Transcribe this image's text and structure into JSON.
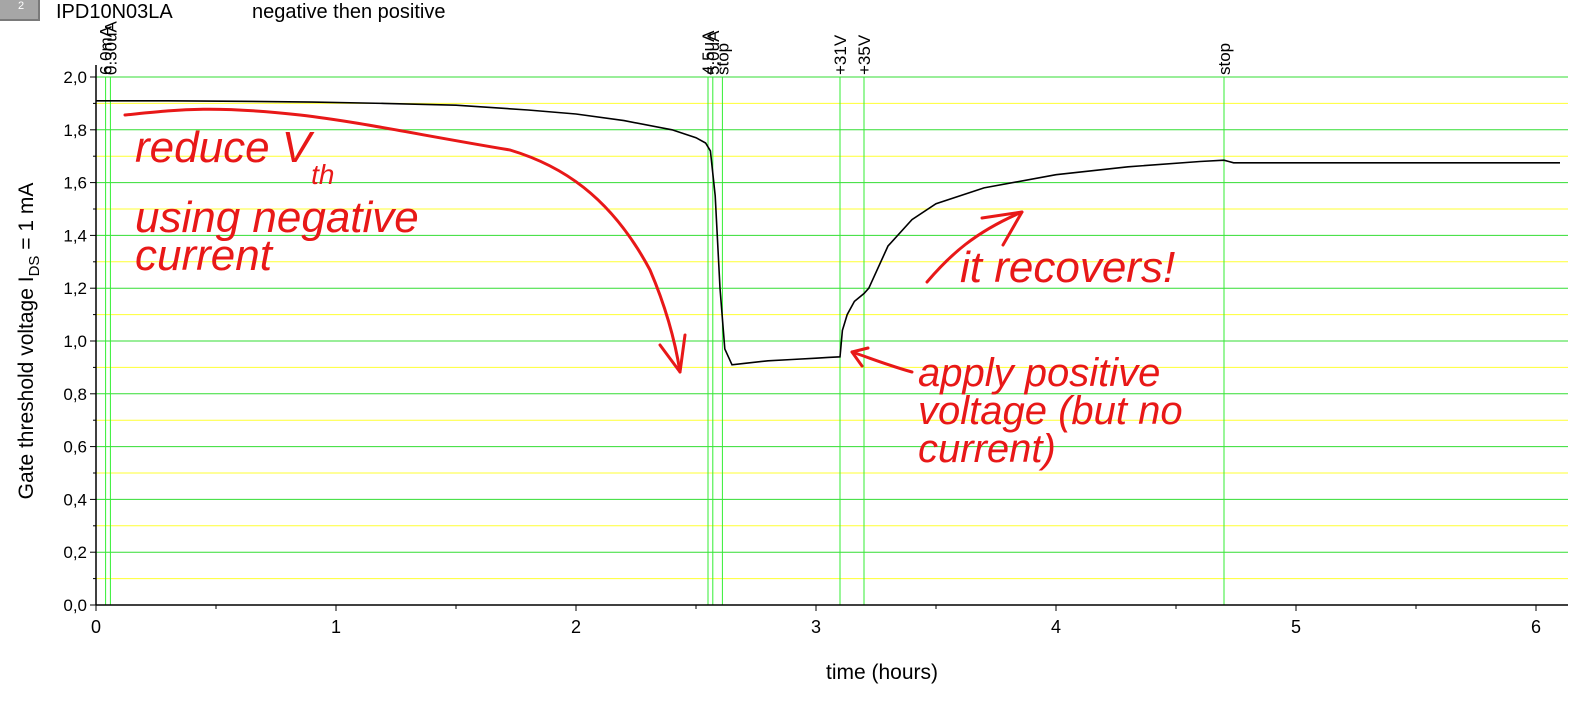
{
  "header": {
    "tab_number": "2",
    "device": "IPD10N03LA",
    "subtitle": "negative then positive"
  },
  "chart_data": {
    "type": "line",
    "xlabel": "time (hours)",
    "ylabel_main": "Gate threshold voltage I",
    "ylabel_sub": "DS",
    "ylabel_tail": " = 1 mA",
    "xlim": [
      0,
      6.1
    ],
    "ylim": [
      0,
      2.0
    ],
    "x_ticks": [
      0,
      1,
      2,
      3,
      4,
      5,
      6
    ],
    "x_tick_labels": [
      "0",
      "1",
      "2",
      "3",
      "4",
      "5",
      "6"
    ],
    "y_ticks": [
      0,
      0.2,
      0.4,
      0.6,
      0.8,
      1.0,
      1.2,
      1.4,
      1.6,
      1.8,
      2.0
    ],
    "y_tick_labels": [
      "0,0",
      "0,2",
      "0,4",
      "0,6",
      "0,8",
      "1,0",
      "1,2",
      "1,4",
      "1,6",
      "1,8",
      "2,0"
    ],
    "grid": true,
    "colors": {
      "major_grid": "#33dd33",
      "minor_grid": "#ffff33",
      "line": "#000000",
      "markers": "#33ee33",
      "annotation": "#e81818"
    },
    "series": [
      {
        "x": [
          0.0,
          0.3,
          0.6,
          0.9,
          1.2,
          1.5,
          1.8,
          2.0,
          2.2,
          2.4,
          2.5,
          2.54,
          2.56,
          2.58,
          2.6,
          2.62,
          2.65,
          2.7,
          2.8,
          2.9,
          3.0,
          3.05,
          3.1,
          3.11,
          3.13,
          3.16,
          3.2,
          3.22,
          3.3,
          3.4,
          3.5,
          3.7,
          4.0,
          4.3,
          4.6,
          4.7,
          4.72,
          4.74,
          5.0,
          5.5,
          6.1
        ],
        "y": [
          1.91,
          1.91,
          1.908,
          1.905,
          1.9,
          1.893,
          1.875,
          1.86,
          1.835,
          1.8,
          1.77,
          1.75,
          1.72,
          1.55,
          1.2,
          0.97,
          0.91,
          0.915,
          0.925,
          0.93,
          0.935,
          0.938,
          0.94,
          1.04,
          1.1,
          1.15,
          1.18,
          1.2,
          1.36,
          1.46,
          1.52,
          1.58,
          1.63,
          1.66,
          1.68,
          1.685,
          1.68,
          1.675,
          1.675,
          1.675,
          1.675
        ]
      }
    ],
    "event_markers": [
      {
        "x": 0.04,
        "label": "6.0mA"
      },
      {
        "x": 0.06,
        "label": "0.30uA"
      },
      {
        "x": 2.55,
        "label": "4.5uA"
      },
      {
        "x": 2.57,
        "label": "5.0uA"
      },
      {
        "x": 2.61,
        "label": "stop"
      },
      {
        "x": 3.1,
        "label": "+31V"
      },
      {
        "x": 3.2,
        "label": "+35V"
      },
      {
        "x": 4.7,
        "label": "stop"
      }
    ]
  },
  "annotations": {
    "reduce_line1": "reduce V",
    "reduce_sub": "th",
    "reduce_line2": "using negative",
    "reduce_line3": "current",
    "recovers": "it recovers!",
    "apply_line1": "apply positive",
    "apply_line2": "voltage (but no",
    "apply_line3": "current)"
  }
}
